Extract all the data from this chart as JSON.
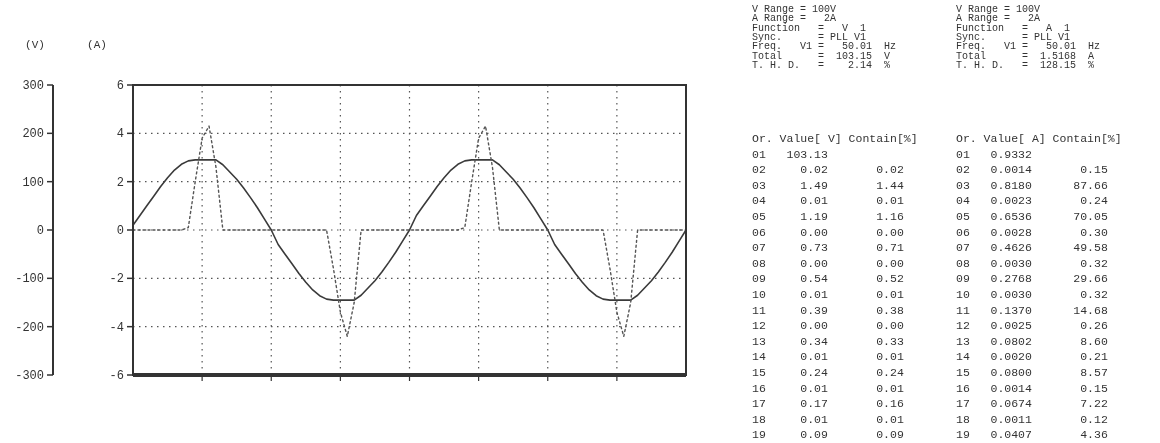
{
  "chart_data": [
    {
      "type": "line",
      "ylabel": "(A)",
      "y2label": "(V)",
      "categories": [
        null,
        null,
        null,
        null,
        null,
        null,
        null,
        null,
        null,
        null,
        null,
        null,
        null,
        null,
        null,
        null,
        null,
        null,
        null,
        null,
        null,
        null,
        null,
        null,
        null,
        null,
        null,
        null,
        null,
        null,
        null,
        null,
        null,
        null,
        null,
        null,
        null,
        null,
        null,
        null,
        null,
        null,
        null,
        null,
        null,
        null,
        null,
        null,
        null,
        null,
        null,
        null,
        null,
        null,
        null,
        null,
        null,
        null,
        null,
        null,
        null,
        null,
        null,
        null,
        null,
        null,
        null,
        null,
        null,
        null,
        null,
        null,
        null,
        null,
        null,
        null,
        null,
        null,
        null,
        null,
        null
      ],
      "ylim": [
        -6,
        6
      ],
      "yticks": [
        -6,
        -4,
        -2,
        0,
        2,
        4,
        6
      ],
      "y2lim": [
        -300,
        300
      ],
      "y2ticks": [
        -300,
        -200,
        -100,
        0,
        100,
        200,
        300
      ],
      "grid": true,
      "tick_labels": "y",
      "series": [
        {
          "color": "#3a3a3a",
          "axis": "y2",
          "line_style": "solid",
          "values": [
            10,
            30,
            50,
            70,
            90,
            108,
            124,
            136,
            143,
            145,
            145,
            145,
            145,
            135,
            120,
            105,
            87,
            67,
            46,
            23,
            0,
            -30,
            -50,
            -70,
            -90,
            -108,
            -124,
            -136,
            -143,
            -145,
            -145,
            -145,
            -145,
            -135,
            -120,
            -105,
            -87,
            -67,
            -46,
            -23,
            0,
            30,
            50,
            70,
            90,
            108,
            124,
            136,
            143,
            145,
            145,
            145,
            145,
            135,
            120,
            105,
            87,
            67,
            46,
            23,
            0,
            -30,
            -50,
            -70,
            -90,
            -108,
            -124,
            -136,
            -143,
            -145,
            -145,
            -145,
            -145,
            -135,
            -120,
            -105,
            -87,
            -67,
            -46,
            -23,
            0
          ]
        },
        {
          "color": "#555555",
          "line_style": "dotted",
          "values": [
            0,
            0,
            0,
            0,
            0,
            0,
            0,
            0,
            0.1,
            2,
            3.8,
            4.3,
            2.6,
            0,
            0,
            0,
            0,
            0,
            0,
            0,
            0,
            0,
            0,
            0,
            0,
            0,
            0,
            0,
            0,
            -1.6,
            -3.4,
            -4.4,
            -3,
            0,
            0,
            0,
            0,
            0,
            0,
            0,
            0,
            0,
            0,
            0,
            0,
            0,
            0,
            0,
            0.1,
            2,
            3.8,
            4.3,
            2.6,
            0,
            0,
            0,
            0,
            0,
            0,
            0,
            0,
            0,
            0,
            0,
            0,
            0,
            0,
            0,
            0,
            -1.6,
            -3.4,
            -4.4,
            -3,
            0,
            0,
            0,
            0,
            0,
            0,
            0,
            0
          ]
        }
      ]
    },
    {
      "type": "other",
      "annotations": [
        "V Range = 100V",
        "A Range =   2A",
        "Function   =   V  1",
        "Sync.      = PLL V1",
        "Freq.   V1 =   50.01  Hz",
        "Total      =  103.15  V",
        "T. H. D.   =    2.14  %",
        "Or. Value[ V] Contain[%]",
        "01   103.13",
        "02     0.02       0.02",
        "03     1.49       1.44",
        "04     0.01       0.01",
        "05     1.19       1.16",
        "06     0.00       0.00",
        "07     0.73       0.71",
        "08     0.00       0.00",
        "09     0.54       0.52",
        "10     0.01       0.01",
        "11     0.39       0.38",
        "12     0.00       0.00",
        "13     0.34       0.33",
        "14     0.01       0.01",
        "15     0.24       0.24",
        "16     0.01       0.01",
        "17     0.17       0.16",
        "18     0.01       0.01",
        "19     0.09       0.09"
      ]
    },
    {
      "type": "other",
      "annotations": [
        "V Range = 100V",
        "A Range =   2A",
        "Function   =   A  1",
        "Sync.      = PLL V1",
        "Freq.   V1 =   50.01  Hz",
        "Total      =  1.5168  A",
        "T. H. D.   =  128.15  %",
        "Or. Value[ A] Contain[%]",
        "01   0.9332",
        "02   0.0014       0.15",
        "03   0.8180      87.66",
        "04   0.0023       0.24",
        "05   0.6536      70.05",
        "06   0.0028       0.30",
        "07   0.4626      49.58",
        "08   0.0030       0.32",
        "09   0.2768      29.66",
        "10   0.0030       0.32",
        "11   0.1370      14.68",
        "12   0.0025       0.26",
        "13   0.0802       8.60",
        "14   0.0020       0.21",
        "15   0.0800       8.57",
        "16   0.0014       0.15",
        "17   0.0674       7.22",
        "18   0.0011       0.12",
        "19   0.0407       4.36"
      ]
    }
  ]
}
